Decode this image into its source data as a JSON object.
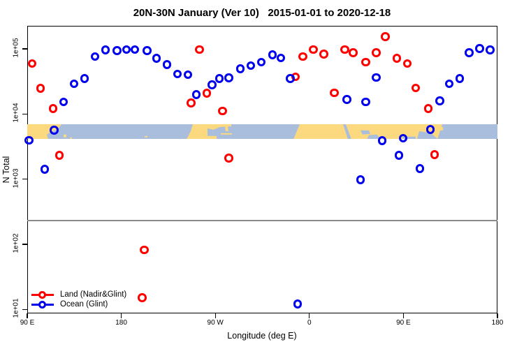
{
  "title": "20N-30N January (Ver 10)   2015-01-01 to 2020-12-18",
  "legend": {
    "items": [
      {
        "label": "Land (Nadir&Glint)",
        "color": "#FF0000"
      },
      {
        "label": "Ocean (Glint)",
        "color": "#0000EE"
      }
    ]
  },
  "chart_data": {
    "type": "scatter",
    "title": "20N-30N January (Ver 10)   2015-01-01 to 2020-12-18",
    "xlabel": "Longitude (deg E)",
    "ylabel": "N Total",
    "x_axis": {
      "span_deg": 450,
      "start_label": "90 E",
      "ticks": [
        {
          "offset_deg": 0,
          "label": "90 E"
        },
        {
          "offset_deg": 90,
          "label": "180"
        },
        {
          "offset_deg": 180,
          "label": "90 W"
        },
        {
          "offset_deg": 270,
          "label": "0"
        },
        {
          "offset_deg": 360,
          "label": "90 E"
        },
        {
          "offset_deg": 450,
          "label": "180"
        }
      ]
    },
    "y_axis": {
      "log": true,
      "ymin": 8.7,
      "ymax": 225000,
      "ticks": [
        {
          "value": 10,
          "label": "1e+01"
        },
        {
          "value": 100,
          "label": "1e+02"
        },
        {
          "value": 1000,
          "label": "1e+03"
        },
        {
          "value": 10000,
          "label": "1e+04"
        },
        {
          "value": 100000,
          "label": "1e+05"
        }
      ]
    },
    "hline_value": 230,
    "hline_color": "#8a8a8a",
    "series": [
      {
        "name": "Land (Nadir&Glint)",
        "color": "#FF0000",
        "points": [
          [
            5,
            59000
          ],
          [
            13,
            24500
          ],
          [
            25,
            12000
          ],
          [
            31,
            2300
          ],
          [
            110,
            15
          ],
          [
            112,
            82
          ],
          [
            157,
            14600
          ],
          [
            165,
            97000
          ],
          [
            172,
            20600
          ],
          [
            187,
            11100
          ],
          [
            193,
            2100
          ],
          [
            257,
            37000
          ],
          [
            264,
            76000
          ],
          [
            274,
            97000
          ],
          [
            284,
            82000
          ],
          [
            294,
            21000
          ],
          [
            304,
            97000
          ],
          [
            312,
            86000
          ],
          [
            324,
            62000
          ],
          [
            334,
            86000
          ],
          [
            343,
            152000
          ],
          [
            354,
            71000
          ],
          [
            364,
            59000
          ],
          [
            372,
            25000
          ],
          [
            384,
            12100
          ],
          [
            390,
            2370
          ]
        ]
      },
      {
        "name": "Ocean (Glint)",
        "color": "#0000EE",
        "points": [
          [
            2,
            3900
          ],
          [
            17,
            1400
          ],
          [
            26,
            5600
          ],
          [
            35,
            15300
          ],
          [
            45,
            29000
          ],
          [
            55,
            34600
          ],
          [
            65,
            76000
          ],
          [
            75,
            95000
          ],
          [
            86,
            93000
          ],
          [
            95,
            97000
          ],
          [
            103,
            97000
          ],
          [
            115,
            93000
          ],
          [
            124,
            71000
          ],
          [
            134,
            57000
          ],
          [
            144,
            41000
          ],
          [
            154,
            40000
          ],
          [
            162,
            19700
          ],
          [
            177,
            27700
          ],
          [
            184,
            34600
          ],
          [
            193,
            35500
          ],
          [
            204,
            49000
          ],
          [
            214,
            55000
          ],
          [
            224,
            62000
          ],
          [
            235,
            80000
          ],
          [
            243,
            72000
          ],
          [
            252,
            34600
          ],
          [
            259,
            12
          ],
          [
            306,
            16500
          ],
          [
            319,
            970
          ],
          [
            324,
            15300
          ],
          [
            334,
            36000
          ],
          [
            340,
            3850
          ],
          [
            356,
            2300
          ],
          [
            360,
            4200
          ],
          [
            376,
            1440
          ],
          [
            386,
            5750
          ],
          [
            395,
            15700
          ],
          [
            404,
            29000
          ],
          [
            414,
            34600
          ],
          [
            423,
            86000
          ],
          [
            433,
            100000
          ],
          [
            443,
            95000
          ]
        ]
      }
    ],
    "map_strip": {
      "n_top": 7000,
      "n_bottom": 4100,
      "ocean_color": "#A9BEDC",
      "land_color": "#FCD87F",
      "land_polys": [
        [
          [
            0,
            0
          ],
          [
            49,
            0
          ],
          [
            44,
            7
          ],
          [
            34,
            11
          ],
          [
            28,
            15
          ],
          [
            30,
            22
          ],
          [
            0,
            22
          ]
        ],
        [
          [
            52,
            15
          ],
          [
            56,
            15
          ],
          [
            56,
            19
          ],
          [
            52,
            19
          ]
        ],
        [
          [
            61,
            19
          ],
          [
            64,
            19
          ],
          [
            64,
            21
          ],
          [
            61,
            21
          ]
        ],
        [
          [
            168,
            17
          ],
          [
            172,
            17
          ],
          [
            172,
            19
          ],
          [
            168,
            19
          ]
        ],
        [
          [
            237,
            0
          ],
          [
            258,
            0
          ],
          [
            258,
            22
          ],
          [
            228,
            22
          ],
          [
            234,
            10
          ]
        ],
        [
          [
            258,
            0
          ],
          [
            292,
            0
          ],
          [
            292,
            3
          ],
          [
            276,
            4
          ],
          [
            266,
            8
          ],
          [
            258,
            6
          ]
        ],
        [
          [
            283,
            3
          ],
          [
            287,
            3
          ],
          [
            288,
            10
          ],
          [
            284,
            10
          ]
        ],
        [
          [
            258,
            17
          ],
          [
            271,
            17
          ],
          [
            271,
            22
          ],
          [
            258,
            22
          ]
        ],
        [
          [
            277,
            13
          ],
          [
            293,
            13
          ],
          [
            293,
            15
          ],
          [
            277,
            15
          ]
        ],
        [
          [
            381,
            22
          ],
          [
            390,
            0
          ],
          [
            594,
            0
          ],
          [
            587,
            22
          ]
        ],
        [
          [
            591,
            4
          ],
          [
            595,
            4
          ],
          [
            595,
            9
          ],
          [
            591,
            9
          ]
        ]
      ],
      "water_overlay_polys": [
        [
          [
            452,
            0
          ],
          [
            456,
            0
          ],
          [
            464,
            22
          ],
          [
            459,
            22
          ]
        ],
        [
          [
            477,
            9
          ],
          [
            489,
            9
          ],
          [
            491,
            14
          ],
          [
            480,
            15
          ]
        ],
        [
          [
            489,
            16
          ],
          [
            500,
            15
          ],
          [
            508,
            22
          ],
          [
            486,
            22
          ]
        ],
        [
          [
            537,
            18
          ],
          [
            556,
            18
          ],
          [
            556,
            22
          ],
          [
            537,
            22
          ]
        ],
        [
          [
            561,
            10
          ],
          [
            578,
            13
          ],
          [
            588,
            22
          ],
          [
            558,
            22
          ]
        ]
      ]
    }
  }
}
